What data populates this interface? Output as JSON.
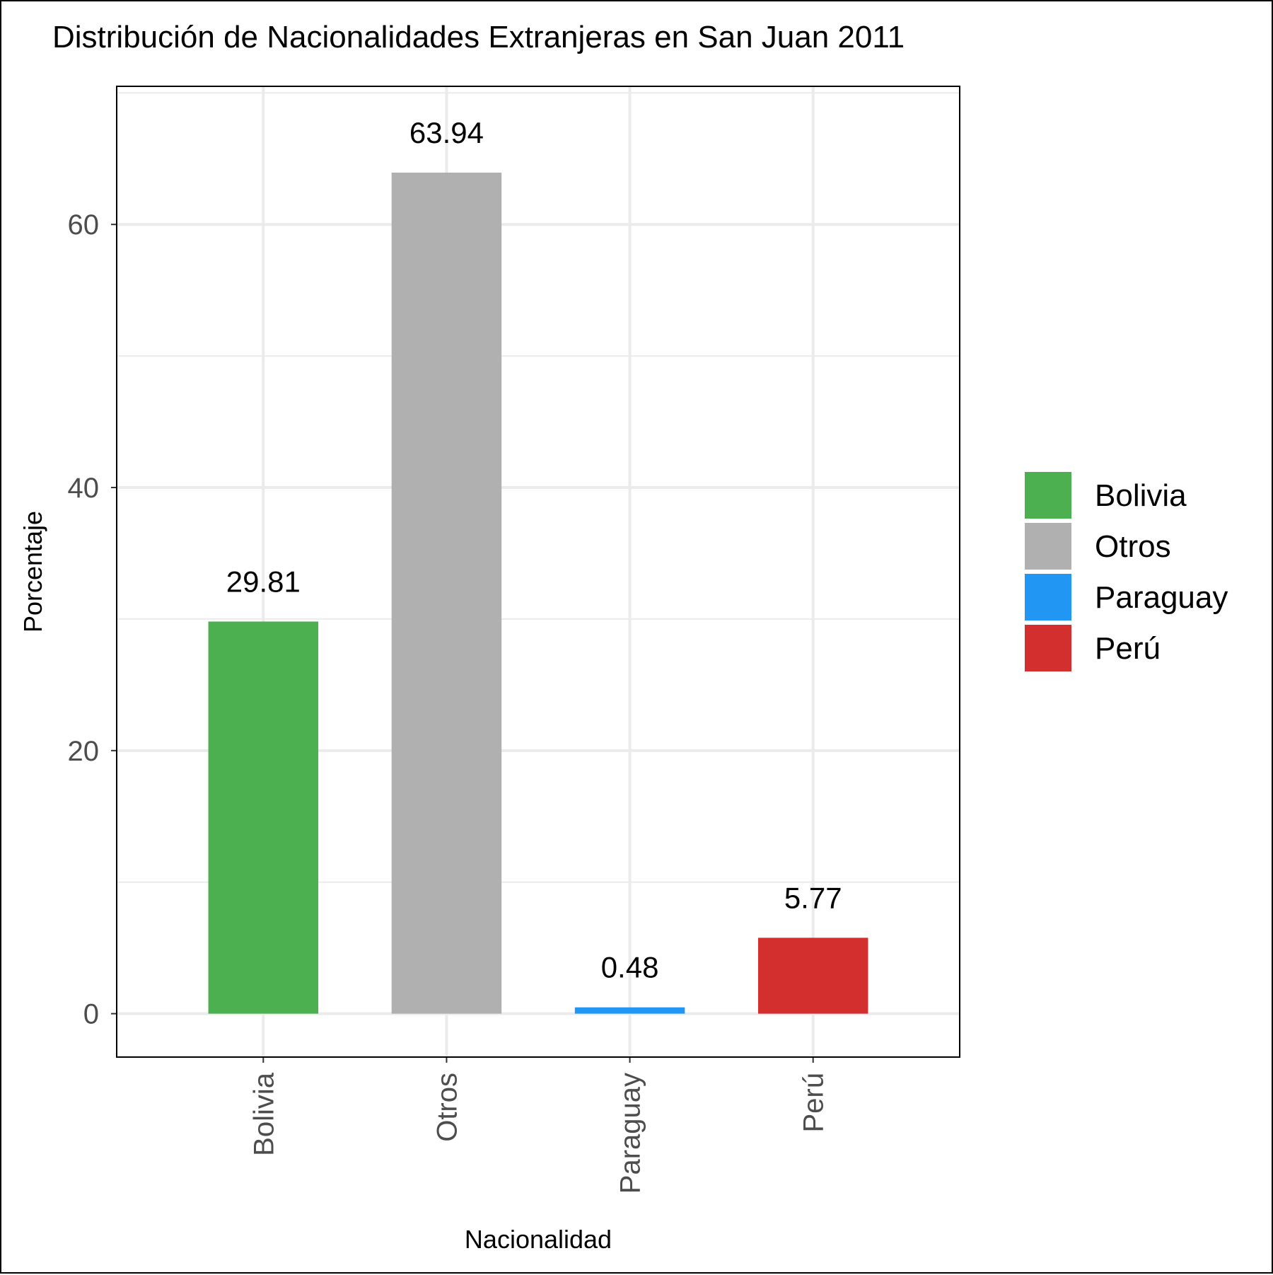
{
  "chart_data": {
    "type": "bar",
    "title": "Distribución de Nacionalidades Extranjeras en San Juan 2011",
    "xlabel": "Nacionalidad",
    "ylabel": "Porcentaje",
    "categories": [
      "Bolivia",
      "Otros",
      "Paraguay",
      "Perú"
    ],
    "values": [
      29.81,
      63.94,
      0.48,
      5.77
    ],
    "value_labels": [
      "29.81",
      "63.94",
      "0.48",
      "5.77"
    ],
    "colors": [
      "#4caf50",
      "#b0b0b0",
      "#2196f3",
      "#d32f2f"
    ],
    "yticks": [
      0,
      20,
      40,
      60
    ],
    "ylim": [
      -3.3,
      70.5
    ],
    "grid": true,
    "legend": {
      "position": "right",
      "entries": [
        "Bolivia",
        "Otros",
        "Paraguay",
        "Perú"
      ]
    }
  }
}
